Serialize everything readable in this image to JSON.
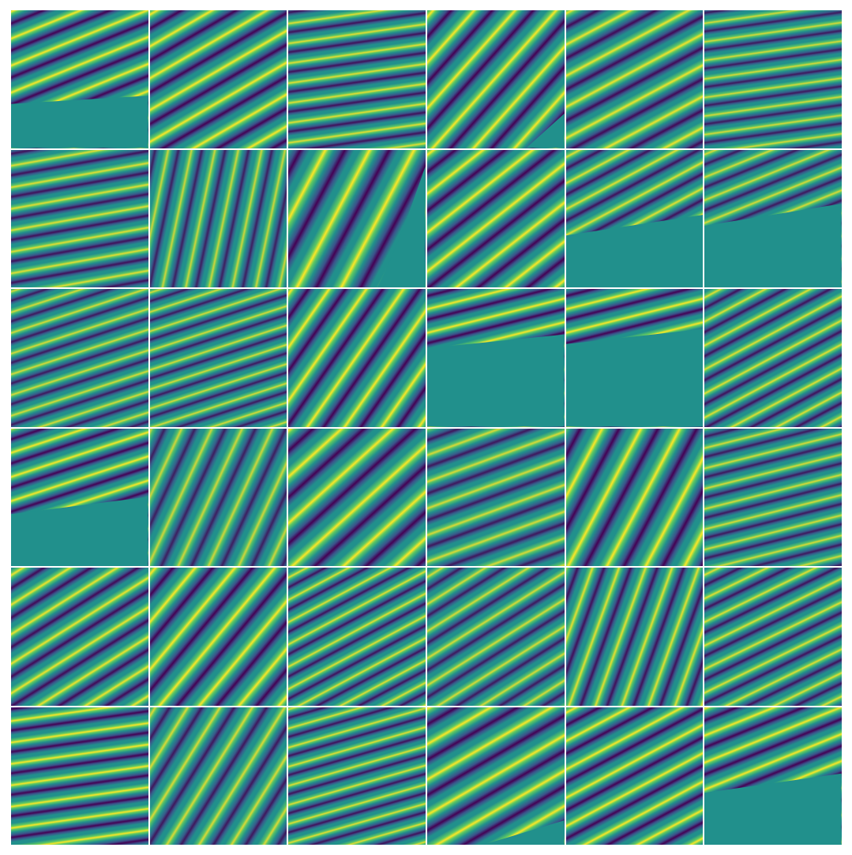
{
  "figure": {
    "kind": "seismic-patch-grid",
    "rows": 6,
    "cols": 6,
    "colormap": [
      "#440154",
      "#3b528b",
      "#21908c",
      "#5ec962",
      "#fde725"
    ],
    "background": "#21908c",
    "separator_color": "#ffffff"
  },
  "tiles": [
    {
      "angle": -22,
      "freq": 0.055,
      "amp": 1.0,
      "mask": "lower-flat",
      "maskLevel": 0.68,
      "maskSlope": 0.12
    },
    {
      "angle": -30,
      "freq": 0.05,
      "amp": 1.0
    },
    {
      "angle": -8,
      "freq": 0.07,
      "amp": 0.9
    },
    {
      "angle": -48,
      "freq": 0.045,
      "amp": 1.0,
      "mask": "lower-right",
      "maskLevel": 0.75,
      "maskSlope": 0.9
    },
    {
      "angle": -28,
      "freq": 0.05,
      "amp": 0.95
    },
    {
      "angle": -8,
      "freq": 0.075,
      "amp": 0.85
    },
    {
      "angle": -10,
      "freq": 0.065,
      "amp": 0.9
    },
    {
      "angle": -78,
      "freq": 0.06,
      "amp": 0.8
    },
    {
      "angle": -62,
      "freq": 0.035,
      "amp": 1.0,
      "mask": "right-curve",
      "maskLevel": 0.68,
      "maskSlope": 0.7
    },
    {
      "angle": -38,
      "freq": 0.045,
      "amp": 1.0
    },
    {
      "angle": -28,
      "freq": 0.06,
      "amp": 0.9,
      "mask": "lower-flat",
      "maskLevel": 0.62,
      "maskSlope": 0.3
    },
    {
      "angle": -22,
      "freq": 0.065,
      "amp": 0.85,
      "mask": "lower-flat",
      "maskLevel": 0.55,
      "maskSlope": 0.32
    },
    {
      "angle": -18,
      "freq": 0.07,
      "amp": 0.85
    },
    {
      "angle": -18,
      "freq": 0.075,
      "amp": 0.85
    },
    {
      "angle": -55,
      "freq": 0.045,
      "amp": 1.0
    },
    {
      "angle": -14,
      "freq": 0.06,
      "amp": 1.0,
      "mask": "lower-flat",
      "maskLevel": 0.43,
      "maskSlope": 0.2
    },
    {
      "angle": -14,
      "freq": 0.06,
      "amp": 1.0,
      "mask": "lower-flat",
      "maskLevel": 0.4,
      "maskSlope": 0.22
    },
    {
      "angle": -28,
      "freq": 0.065,
      "amp": 0.9
    },
    {
      "angle": -18,
      "freq": 0.06,
      "amp": 1.0,
      "mask": "lower-flat",
      "maskLevel": 0.62,
      "maskSlope": 0.25
    },
    {
      "angle": -65,
      "freq": 0.05,
      "amp": 0.8
    },
    {
      "angle": -42,
      "freq": 0.04,
      "amp": 1.0
    },
    {
      "angle": -20,
      "freq": 0.055,
      "amp": 0.85
    },
    {
      "angle": -62,
      "freq": 0.04,
      "amp": 1.0
    },
    {
      "angle": -14,
      "freq": 0.07,
      "amp": 0.85
    },
    {
      "angle": -32,
      "freq": 0.055,
      "amp": 0.95
    },
    {
      "angle": -50,
      "freq": 0.045,
      "amp": 1.0
    },
    {
      "angle": -28,
      "freq": 0.07,
      "amp": 0.9
    },
    {
      "angle": -32,
      "freq": 0.06,
      "amp": 0.85
    },
    {
      "angle": -70,
      "freq": 0.055,
      "amp": 0.9
    },
    {
      "angle": -26,
      "freq": 0.065,
      "amp": 0.9
    },
    {
      "angle": -8,
      "freq": 0.065,
      "amp": 1.0
    },
    {
      "angle": -58,
      "freq": 0.05,
      "amp": 0.85
    },
    {
      "angle": -16,
      "freq": 0.075,
      "amp": 0.9
    },
    {
      "angle": -30,
      "freq": 0.045,
      "amp": 1.0,
      "mask": "lower-right",
      "maskLevel": 0.82,
      "maskSlope": 0.3
    },
    {
      "angle": -28,
      "freq": 0.055,
      "amp": 1.0
    },
    {
      "angle": -22,
      "freq": 0.055,
      "amp": 1.0,
      "mask": "lower-flat",
      "maskLevel": 0.62,
      "maskSlope": 0.28
    }
  ]
}
